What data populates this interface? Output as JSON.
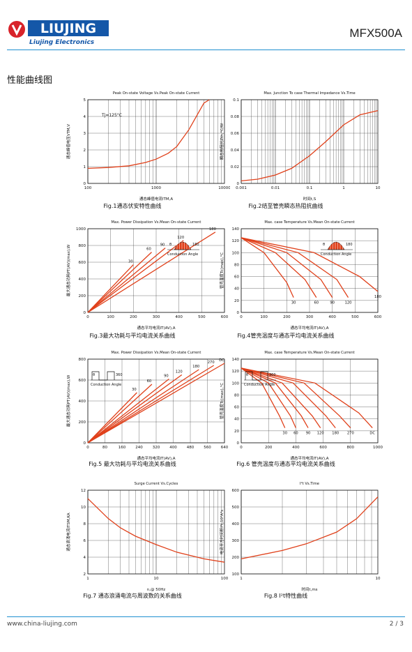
{
  "header": {
    "logo_text": "LIUJING",
    "logo_sub": "Liujing Electronics",
    "model": "MFX500A"
  },
  "section_title": "性能曲线图",
  "charts": [
    {
      "id": "fig1",
      "title": "Peak On-state Voltage Vs.Peak On-state Current",
      "caption": "Fig.1通态伏安特性曲线",
      "xlabel": "通态峰值电流ITM,A",
      "ylabel": "通态峰值电压VTM,V",
      "xticks": [
        "100",
        "1000",
        "10000"
      ],
      "yticks": [
        "0",
        "1",
        "2",
        "3",
        "4",
        "5"
      ],
      "annotation": "Tj=125°C"
    },
    {
      "id": "fig2",
      "title": "Max. Junction To case Thermal Impedance Vs.Time",
      "caption": "Fig.2结至管壳瞬态热阻抗曲线",
      "xlabel": "时间t,S",
      "ylabel": "瞬态热阻抗Zth,°C/W",
      "xticks": [
        "0.001",
        "0.01",
        "0.1",
        "1",
        "10"
      ],
      "yticks": [
        "0",
        "0.02",
        "0.04",
        "0.06",
        "0.08",
        "0.1"
      ]
    },
    {
      "id": "fig3",
      "title": "Max. Power Dissipation Vs.Mean On-state Current",
      "caption": "Fig.3最大功耗与平均电流关系曲线",
      "xlabel": "通态平均电流IT(AV),A",
      "ylabel": "最大通态功耗PT(AV)(max),W",
      "xticks": [
        "0",
        "100",
        "200",
        "300",
        "400",
        "500",
        "600"
      ],
      "yticks": [
        "0",
        "200",
        "400",
        "600",
        "800",
        "1000"
      ],
      "legend_labels": [
        "θ",
        "180",
        "Conduction Angle"
      ],
      "curve_labels": [
        "30",
        "60",
        "90",
        "120",
        "180"
      ]
    },
    {
      "id": "fig4",
      "title": "Max. case Temperature Vs.Mean On-state Current",
      "caption": "Fig.4管壳温度与通态平均电流关系曲线",
      "xlabel": "通态平均电流IT(AV),A",
      "ylabel": "管壳温度Tc(max),°C",
      "xticks": [
        "0",
        "100",
        "200",
        "300",
        "400",
        "500",
        "600"
      ],
      "yticks": [
        "0",
        "20",
        "40",
        "60",
        "80",
        "100",
        "120",
        "140"
      ],
      "legend_labels": [
        "θ",
        "180",
        "Conduction Angle"
      ],
      "curve_labels": [
        "30",
        "60",
        "90",
        "120",
        "180"
      ]
    },
    {
      "id": "fig5",
      "title": "Max. Power Dissipation Vs.Mean On-state Current",
      "caption": "Fig.5 最大功耗与平均电流关系曲线",
      "xlabel": "通态平均电流IT(AV),A",
      "ylabel": "最大通态功耗PT(AV)(max),W",
      "xticks": [
        "0",
        "80",
        "160",
        "240",
        "320",
        "400",
        "480",
        "560",
        "640"
      ],
      "yticks": [
        "0",
        "200",
        "400",
        "600",
        "800"
      ],
      "legend_labels": [
        "θ",
        "360",
        "Conduction Angle"
      ],
      "curve_labels": [
        "30",
        "60",
        "90",
        "120",
        "180",
        "270",
        "DC"
      ]
    },
    {
      "id": "fig6",
      "title": "Max. case Temperature Vs.Mean On-state Current",
      "caption": "Fig.6 管壳温度与通态平均电流关系曲线",
      "xlabel": "通态平均电流IT(AV),A",
      "ylabel": "管壳温度Tc(max),°C",
      "xticks": [
        "0",
        "200",
        "400",
        "600",
        "800",
        "1000"
      ],
      "yticks": [
        "0",
        "20",
        "40",
        "60",
        "80",
        "100",
        "120",
        "140"
      ],
      "legend_labels": [
        "θ",
        "360",
        "Conduction Angle"
      ],
      "curve_labels": [
        "30",
        "60",
        "90",
        "120",
        "180",
        "270",
        "DC"
      ]
    },
    {
      "id": "fig7",
      "title": "Surge Current Vs.Cycles",
      "caption": "Fig.7 通态浪涌电流与周波数的关系曲线",
      "xlabel": "n,@ 50Hz",
      "ylabel": "通态浪涌电流ITSM,KA",
      "xticks": [
        "1",
        "10",
        "100"
      ],
      "yticks": [
        "2",
        "4",
        "6",
        "8",
        "10",
        "12"
      ]
    },
    {
      "id": "fig8",
      "title": "I²t Vs.Time",
      "caption": "Fig.8 I²t特性曲线",
      "xlabel": "时间t,ms",
      "ylabel": "电流平方时间积I²t,10³A²s",
      "xticks": [
        "1",
        "10"
      ],
      "yticks": [
        "100",
        "200",
        "300",
        "400",
        "500",
        "600"
      ]
    }
  ],
  "chart_data": [
    {
      "type": "line",
      "title": "Peak On-state Voltage Vs.Peak On-state Current",
      "xscale": "log",
      "xlim": [
        100,
        10000
      ],
      "ylim": [
        0,
        5
      ],
      "series": [
        {
          "x": [
            100,
            200,
            400,
            700,
            1000,
            1500,
            2000,
            3000,
            4000,
            5000,
            6000
          ],
          "y": [
            0.9,
            0.95,
            1.05,
            1.25,
            1.45,
            1.8,
            2.2,
            3.2,
            4.1,
            4.8,
            5.0
          ]
        }
      ]
    },
    {
      "type": "line",
      "title": "Max. Junction To case Thermal Impedance Vs.Time",
      "xscale": "log",
      "xlim": [
        0.001,
        10
      ],
      "ylim": [
        0,
        0.1
      ],
      "series": [
        {
          "x": [
            0.001,
            0.003,
            0.01,
            0.03,
            0.1,
            0.3,
            1,
            3,
            10
          ],
          "y": [
            0.003,
            0.005,
            0.01,
            0.018,
            0.033,
            0.05,
            0.07,
            0.082,
            0.087
          ]
        }
      ]
    },
    {
      "type": "line",
      "title": "Max. Power Dissipation Vs.Mean On-state Current",
      "xlim": [
        0,
        600
      ],
      "ylim": [
        0,
        1000
      ],
      "series": [
        {
          "name": "30",
          "x": [
            0,
            200
          ],
          "y": [
            0,
            570
          ]
        },
        {
          "name": "60",
          "x": [
            0,
            280
          ],
          "y": [
            0,
            720
          ]
        },
        {
          "name": "90",
          "x": [
            0,
            340
          ],
          "y": [
            0,
            770
          ]
        },
        {
          "name": "120",
          "x": [
            0,
            420
          ],
          "y": [
            0,
            860
          ]
        },
        {
          "name": "180",
          "x": [
            0,
            560
          ],
          "y": [
            0,
            960
          ]
        }
      ]
    },
    {
      "type": "line",
      "title": "Max. case Temperature Vs.Mean On-state Current",
      "xlim": [
        0,
        600
      ],
      "ylim": [
        0,
        140
      ],
      "series": [
        {
          "name": "30",
          "x": [
            0,
            100,
            200,
            230
          ],
          "y": [
            125,
            100,
            50,
            25
          ]
        },
        {
          "name": "60",
          "x": [
            0,
            150,
            280,
            330
          ],
          "y": [
            125,
            100,
            55,
            25
          ]
        },
        {
          "name": "90",
          "x": [
            0,
            200,
            350,
            400
          ],
          "y": [
            125,
            100,
            55,
            25
          ]
        },
        {
          "name": "120",
          "x": [
            0,
            250,
            420,
            470
          ],
          "y": [
            125,
            100,
            55,
            25
          ]
        },
        {
          "name": "180",
          "x": [
            0,
            320,
            520,
            600
          ],
          "y": [
            125,
            100,
            60,
            35
          ]
        }
      ]
    },
    {
      "type": "line",
      "title": "Max. Power Dissipation Vs.Mean On-state Current",
      "xlim": [
        0,
        640
      ],
      "ylim": [
        0,
        800
      ],
      "series": [
        {
          "name": "30",
          "x": [
            0,
            230
          ],
          "y": [
            0,
            480
          ]
        },
        {
          "name": "60",
          "x": [
            0,
            300
          ],
          "y": [
            0,
            560
          ]
        },
        {
          "name": "90",
          "x": [
            0,
            380
          ],
          "y": [
            0,
            610
          ]
        },
        {
          "name": "120",
          "x": [
            0,
            440
          ],
          "y": [
            0,
            650
          ]
        },
        {
          "name": "180",
          "x": [
            0,
            520
          ],
          "y": [
            0,
            700
          ]
        },
        {
          "name": "270",
          "x": [
            0,
            590
          ],
          "y": [
            0,
            740
          ]
        },
        {
          "name": "DC",
          "x": [
            0,
            640
          ],
          "y": [
            0,
            760
          ]
        }
      ]
    },
    {
      "type": "line",
      "title": "Max. case Temperature Vs.Mean On-state Current",
      "xlim": [
        0,
        1000
      ],
      "ylim": [
        0,
        140
      ],
      "series": [
        {
          "name": "30",
          "x": [
            0,
            150,
            280,
            320
          ],
          "y": [
            125,
            100,
            45,
            25
          ]
        },
        {
          "name": "60",
          "x": [
            0,
            200,
            360,
            400
          ],
          "y": [
            125,
            100,
            45,
            25
          ]
        },
        {
          "name": "90",
          "x": [
            0,
            250,
            440,
            490
          ],
          "y": [
            125,
            100,
            45,
            25
          ]
        },
        {
          "name": "120",
          "x": [
            0,
            300,
            520,
            580
          ],
          "y": [
            125,
            100,
            45,
            25
          ]
        },
        {
          "name": "180",
          "x": [
            0,
            380,
            620,
            690
          ],
          "y": [
            125,
            100,
            45,
            25
          ]
        },
        {
          "name": "270",
          "x": [
            0,
            460,
            720,
            800
          ],
          "y": [
            125,
            100,
            45,
            25
          ]
        },
        {
          "name": "DC",
          "x": [
            0,
            540,
            860,
            960
          ],
          "y": [
            125,
            100,
            50,
            25
          ]
        }
      ]
    },
    {
      "type": "line",
      "title": "Surge Current Vs.Cycles",
      "xscale": "log",
      "xlim": [
        1,
        100
      ],
      "ylim": [
        2,
        12
      ],
      "series": [
        {
          "x": [
            1,
            2,
            3,
            5,
            10,
            20,
            50,
            100
          ],
          "y": [
            11,
            8.6,
            7.5,
            6.5,
            5.5,
            4.6,
            3.8,
            3.4
          ]
        }
      ]
    },
    {
      "type": "line",
      "title": "I²t Vs.Time",
      "xscale": "log",
      "xlim": [
        1,
        10
      ],
      "ylim": [
        100,
        600
      ],
      "series": [
        {
          "x": [
            1,
            2,
            3,
            5,
            7,
            10
          ],
          "y": [
            190,
            240,
            280,
            350,
            430,
            560
          ]
        }
      ]
    }
  ],
  "footer": {
    "url": "www.china-liujing.com",
    "page": "2 / 3"
  }
}
